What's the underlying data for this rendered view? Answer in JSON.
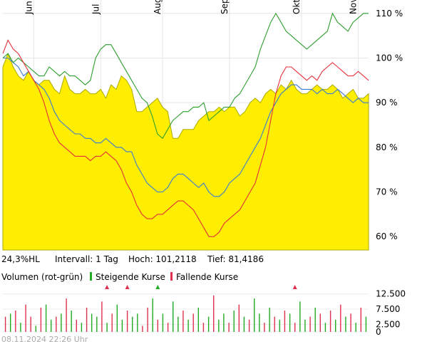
{
  "chart_data": [
    {
      "type": "line",
      "title": "",
      "x_labels": [
        "Jun",
        "Jul",
        "Aug",
        "Sep",
        "Okt",
        "Nov"
      ],
      "y_ticks": [
        "60 %",
        "70 %",
        "80 %",
        "90 %",
        "100 %",
        "110 %"
      ],
      "ylim": [
        57,
        113
      ],
      "grid": true,
      "colors": {
        "area_fill": "#ffee00",
        "area_line": "#aaaa00",
        "series_blue": "#3a7bd5",
        "series_green": "#2e9e2e",
        "series_red": "#e8303a"
      },
      "area": {
        "name": "",
        "values": [
          98,
          101,
          98,
          96,
          95,
          97,
          95,
          94,
          95,
          95,
          93,
          92,
          96,
          93,
          92,
          92,
          93,
          92,
          92,
          93,
          91,
          94,
          93,
          96,
          95,
          93,
          88,
          88,
          89,
          90,
          91,
          89,
          88,
          82,
          82,
          84,
          84,
          84,
          86,
          87,
          88,
          88,
          89,
          88,
          89,
          89,
          87,
          88,
          90,
          91,
          90,
          92,
          93,
          92,
          94,
          93,
          95,
          93,
          92,
          92,
          93,
          94,
          93,
          93,
          94,
          93,
          91,
          92,
          93,
          91,
          91,
          92
        ]
      },
      "series": [
        {
          "name": "",
          "values": [
            100,
            100,
            99,
            98,
            96,
            97,
            95,
            94,
            93,
            91,
            88,
            86,
            85,
            84,
            83,
            83,
            82,
            82,
            81,
            81,
            82,
            81,
            80,
            80,
            79,
            79,
            76,
            74,
            72,
            71,
            70,
            70,
            71,
            73,
            74,
            74,
            73,
            72,
            71,
            72,
            70,
            69,
            69,
            70,
            72,
            73,
            74,
            76,
            78,
            80,
            82,
            85,
            88,
            90,
            92,
            93,
            94,
            94,
            93,
            93,
            93,
            92,
            93,
            92,
            92,
            93,
            92,
            91,
            90,
            91,
            90,
            90
          ]
        },
        {
          "name": "",
          "values": [
            100,
            101,
            99,
            100,
            99,
            98,
            97,
            96,
            96,
            98,
            97,
            96,
            97,
            96,
            96,
            95,
            94,
            95,
            100,
            102,
            103,
            103,
            101,
            99,
            97,
            95,
            93,
            91,
            90,
            87,
            83,
            82,
            84,
            86,
            87,
            88,
            88,
            89,
            89,
            90,
            86,
            87,
            88,
            89,
            89,
            91,
            92,
            94,
            96,
            98,
            102,
            105,
            108,
            110,
            108,
            106,
            105,
            104,
            103,
            102,
            103,
            104,
            105,
            106,
            110,
            108,
            107,
            106,
            108,
            109,
            110,
            110
          ]
        },
        {
          "name": "",
          "values": [
            101,
            104,
            102,
            101,
            99,
            97,
            95,
            93,
            90,
            86,
            83,
            81,
            80,
            79,
            78,
            78,
            78,
            77,
            78,
            78,
            79,
            78,
            77,
            75,
            72,
            70,
            67,
            65,
            64,
            64,
            65,
            65,
            66,
            67,
            68,
            68,
            67,
            66,
            64,
            62,
            60,
            60,
            61,
            63,
            64,
            65,
            66,
            68,
            70,
            72,
            76,
            80,
            86,
            92,
            96,
            98,
            98,
            97,
            96,
            95,
            96,
            95,
            97,
            98,
            99,
            98,
            97,
            96,
            96,
            97,
            96,
            95
          ]
        }
      ]
    },
    {
      "type": "bar",
      "title": "Volumen (rot-grün)",
      "y_ticks": [
        "12.500",
        "7.500",
        "2.500",
        "0"
      ],
      "ylim": [
        0,
        15000
      ],
      "legend": [
        "Steigende Kurse",
        "Fallende Kurse"
      ],
      "colors": {
        "up": "#22aa22",
        "down": "#e03050"
      },
      "values": [
        5000,
        6000,
        7000,
        3000,
        9000,
        5000,
        2000,
        8000,
        9000,
        4000,
        5000,
        6000,
        11000,
        7000,
        4000,
        3000,
        8000,
        6000,
        5000,
        10000,
        3000,
        6000,
        9000,
        4000,
        7000,
        5000,
        6000,
        2000,
        8000,
        11000,
        4000,
        6000,
        3000,
        10000,
        5000,
        7000,
        4000,
        6000,
        8000,
        3000,
        5000,
        12000,
        4000,
        6000,
        3000,
        7000,
        9000,
        5000,
        4000,
        11000,
        6000,
        3000,
        8000,
        5000,
        4000,
        7000,
        6000,
        3000,
        10000,
        4000,
        5000,
        8000,
        6000,
        3000,
        7000,
        4000,
        9000,
        5000,
        6000,
        3000,
        8000,
        5000
      ],
      "directions": [
        "d",
        "u",
        "d",
        "u",
        "d",
        "d",
        "u",
        "d",
        "u",
        "u",
        "d",
        "u",
        "d",
        "u",
        "d",
        "u",
        "d",
        "u",
        "u",
        "d",
        "u",
        "d",
        "u",
        "u",
        "d",
        "u",
        "u",
        "d",
        "d",
        "u",
        "d",
        "u",
        "d",
        "u",
        "u",
        "d",
        "u",
        "d",
        "u",
        "d",
        "u",
        "d",
        "u",
        "u",
        "d",
        "u",
        "d",
        "u",
        "d",
        "u",
        "u",
        "d",
        "u",
        "d",
        "u",
        "d",
        "u",
        "d",
        "u",
        "u",
        "d",
        "u",
        "d",
        "u",
        "d",
        "u",
        "d",
        "u",
        "d",
        "u",
        "d",
        "u"
      ]
    }
  ],
  "stats": {
    "range": "24,3%HL",
    "interval": "Intervall: 1 Tag",
    "high": "Hoch: 101,2118",
    "low": "Tief: 81,4186"
  },
  "volume_legend": {
    "label": "Volumen (rot-grün)",
    "up": "Steigende Kurse",
    "down": "Fallende Kurse"
  },
  "footer": {
    "timestamp": "08.11.2024 22:26 Uhr"
  }
}
